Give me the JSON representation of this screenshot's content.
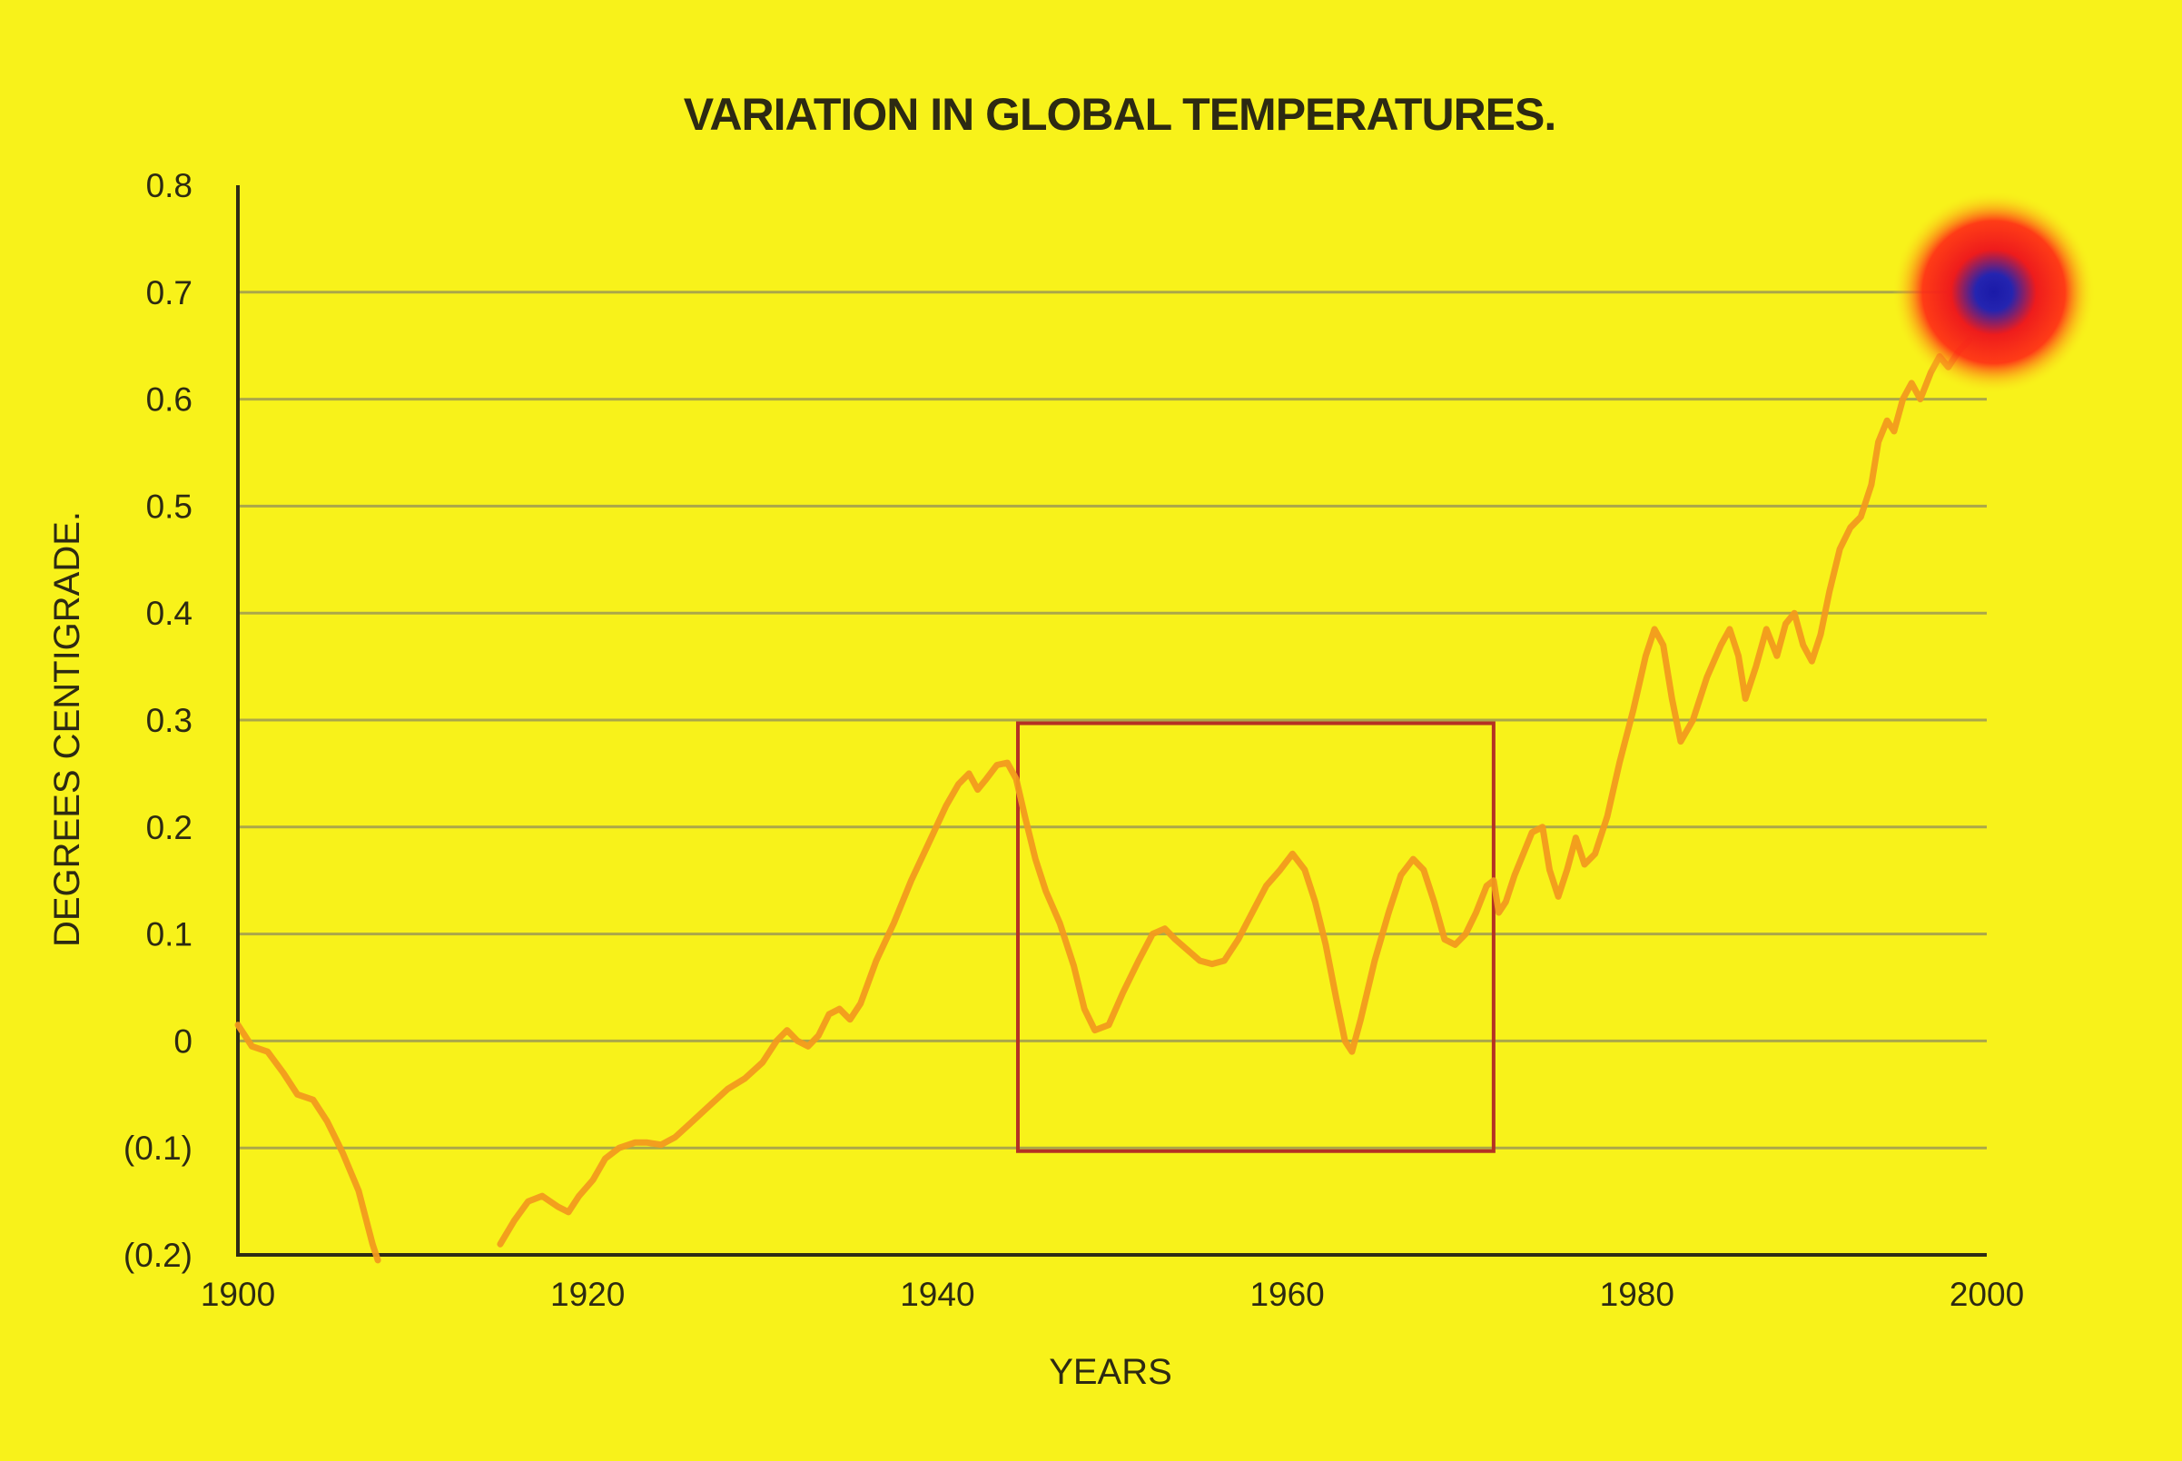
{
  "chart_data": {
    "type": "line",
    "title": "VARIATION IN GLOBAL TEMPERATURES.",
    "xlabel": "YEARS",
    "ylabel": "DEGREES CENTIGRADE.",
    "xlim": [
      1900,
      2000
    ],
    "ylim": [
      -0.2,
      0.8
    ],
    "x_ticks": [
      {
        "value": 1900,
        "label": "1900"
      },
      {
        "value": 1920,
        "label": "1920"
      },
      {
        "value": 1940,
        "label": "1940"
      },
      {
        "value": 1960,
        "label": "1960"
      },
      {
        "value": 1980,
        "label": "1980"
      },
      {
        "value": 2000,
        "label": "2000"
      }
    ],
    "y_ticks": [
      {
        "value": 0.8,
        "label": "0.8"
      },
      {
        "value": 0.7,
        "label": "0.7"
      },
      {
        "value": 0.6,
        "label": "0.6"
      },
      {
        "value": 0.5,
        "label": "0.5"
      },
      {
        "value": 0.4,
        "label": "0.4"
      },
      {
        "value": 0.3,
        "label": "0.3"
      },
      {
        "value": 0.2,
        "label": "0.2"
      },
      {
        "value": 0.1,
        "label": "0.1"
      },
      {
        "value": 0,
        "label": "0"
      },
      {
        "value": -0.1,
        "label": "(0.1)"
      },
      {
        "value": -0.2,
        "label": "(0.2)"
      }
    ],
    "grid": true,
    "series": [
      {
        "color": "#f29a1e",
        "segments": [
          [
            [
              1900.0,
              0.015
            ],
            [
              1900.8,
              -0.005
            ],
            [
              1901.7,
              -0.01
            ],
            [
              1902.6,
              -0.03
            ],
            [
              1903.4,
              -0.05
            ],
            [
              1904.3,
              -0.055
            ],
            [
              1905.1,
              -0.075
            ],
            [
              1906.0,
              -0.105
            ],
            [
              1906.9,
              -0.14
            ],
            [
              1907.7,
              -0.19
            ],
            [
              1908.0,
              -0.205
            ]
          ],
          [
            [
              1915.0,
              -0.19
            ],
            [
              1915.8,
              -0.168
            ],
            [
              1916.6,
              -0.15
            ],
            [
              1917.4,
              -0.145
            ],
            [
              1918.3,
              -0.155
            ],
            [
              1918.9,
              -0.16
            ],
            [
              1919.5,
              -0.145
            ],
            [
              1920.3,
              -0.13
            ],
            [
              1921.0,
              -0.11
            ],
            [
              1921.8,
              -0.1
            ],
            [
              1922.7,
              -0.095
            ],
            [
              1923.4,
              -0.095
            ],
            [
              1924.2,
              -0.097
            ],
            [
              1925.0,
              -0.09
            ],
            [
              1926.0,
              -0.075
            ],
            [
              1927.0,
              -0.06
            ],
            [
              1928.0,
              -0.045
            ],
            [
              1929.0,
              -0.035
            ],
            [
              1930.0,
              -0.02
            ],
            [
              1930.8,
              0.0
            ],
            [
              1931.4,
              0.01
            ],
            [
              1932.0,
              0.0
            ],
            [
              1932.6,
              -0.005
            ],
            [
              1933.2,
              0.005
            ],
            [
              1933.8,
              0.025
            ],
            [
              1934.4,
              0.03
            ],
            [
              1935.0,
              0.02
            ],
            [
              1935.6,
              0.035
            ],
            [
              1936.5,
              0.075
            ],
            [
              1937.5,
              0.11
            ],
            [
              1938.5,
              0.15
            ],
            [
              1939.5,
              0.185
            ],
            [
              1940.5,
              0.22
            ],
            [
              1941.2,
              0.24
            ],
            [
              1941.8,
              0.25
            ],
            [
              1942.3,
              0.235
            ],
            [
              1942.8,
              0.245
            ],
            [
              1943.4,
              0.258
            ],
            [
              1944.0,
              0.26
            ],
            [
              1944.5,
              0.245
            ],
            [
              1945.0,
              0.21
            ],
            [
              1945.6,
              0.17
            ],
            [
              1946.2,
              0.14
            ],
            [
              1947.0,
              0.11
            ],
            [
              1947.8,
              0.07
            ],
            [
              1948.4,
              0.03
            ],
            [
              1949.0,
              0.01
            ],
            [
              1949.8,
              0.015
            ],
            [
              1950.6,
              0.045
            ],
            [
              1951.5,
              0.075
            ],
            [
              1952.3,
              0.1
            ],
            [
              1953.0,
              0.105
            ],
            [
              1953.6,
              0.095
            ],
            [
              1954.3,
              0.085
            ],
            [
              1955.0,
              0.075
            ],
            [
              1955.7,
              0.072
            ],
            [
              1956.4,
              0.075
            ],
            [
              1957.2,
              0.095
            ],
            [
              1958.0,
              0.12
            ],
            [
              1958.8,
              0.145
            ],
            [
              1959.6,
              0.16
            ],
            [
              1960.3,
              0.175
            ],
            [
              1961.0,
              0.16
            ],
            [
              1961.6,
              0.13
            ],
            [
              1962.2,
              0.09
            ],
            [
              1962.8,
              0.04
            ],
            [
              1963.3,
              0.0
            ],
            [
              1963.7,
              -0.01
            ],
            [
              1964.2,
              0.02
            ],
            [
              1965.0,
              0.075
            ],
            [
              1965.8,
              0.12
            ],
            [
              1966.5,
              0.155
            ],
            [
              1967.2,
              0.17
            ],
            [
              1967.8,
              0.16
            ],
            [
              1968.4,
              0.13
            ],
            [
              1969.0,
              0.095
            ],
            [
              1969.6,
              0.09
            ],
            [
              1970.2,
              0.1
            ],
            [
              1970.8,
              0.12
            ],
            [
              1971.4,
              0.145
            ],
            [
              1971.8,
              0.15
            ],
            [
              1972.1,
              0.12
            ],
            [
              1972.5,
              0.13
            ],
            [
              1973.0,
              0.155
            ],
            [
              1973.5,
              0.175
            ],
            [
              1974.0,
              0.195
            ],
            [
              1974.6,
              0.2
            ],
            [
              1975.0,
              0.16
            ],
            [
              1975.5,
              0.135
            ],
            [
              1976.0,
              0.16
            ],
            [
              1976.5,
              0.19
            ],
            [
              1977.0,
              0.165
            ],
            [
              1977.6,
              0.175
            ],
            [
              1978.3,
              0.21
            ],
            [
              1979.0,
              0.26
            ],
            [
              1979.8,
              0.31
            ],
            [
              1980.5,
              0.36
            ],
            [
              1981.0,
              0.385
            ],
            [
              1981.5,
              0.37
            ],
            [
              1982.0,
              0.32
            ],
            [
              1982.5,
              0.28
            ],
            [
              1983.2,
              0.3
            ],
            [
              1984.0,
              0.34
            ],
            [
              1984.8,
              0.37
            ],
            [
              1985.3,
              0.385
            ],
            [
              1985.8,
              0.36
            ],
            [
              1986.2,
              0.32
            ],
            [
              1986.8,
              0.35
            ],
            [
              1987.4,
              0.385
            ],
            [
              1988.0,
              0.36
            ],
            [
              1988.5,
              0.39
            ],
            [
              1989.0,
              0.4
            ],
            [
              1989.5,
              0.37
            ],
            [
              1990.0,
              0.355
            ],
            [
              1990.5,
              0.38
            ],
            [
              1991.0,
              0.42
            ],
            [
              1991.6,
              0.46
            ],
            [
              1992.2,
              0.48
            ],
            [
              1992.8,
              0.49
            ],
            [
              1993.4,
              0.52
            ],
            [
              1993.8,
              0.56
            ],
            [
              1994.3,
              0.58
            ],
            [
              1994.7,
              0.57
            ],
            [
              1995.2,
              0.6
            ],
            [
              1995.7,
              0.615
            ],
            [
              1996.2,
              0.6
            ],
            [
              1996.8,
              0.625
            ],
            [
              1997.3,
              0.64
            ],
            [
              1997.8,
              0.63
            ],
            [
              1998.4,
              0.645
            ],
            [
              1999.0,
              0.655
            ]
          ]
        ]
      }
    ],
    "annotations": [
      {
        "type": "rectangle",
        "x": [
          1944.6,
          1971.8
        ],
        "y": [
          -0.103,
          0.297
        ],
        "color": "#b43124"
      },
      {
        "type": "glow-marker",
        "x": 2000.4,
        "y": 0.7,
        "colors": [
          "#1a1aa8",
          "#ee1c1c",
          "#f8f21a"
        ]
      }
    ],
    "colors": {
      "background": "#f8f21a",
      "text": "#2d2a12",
      "axis": "#2e2b14",
      "grid": "#9e9b52"
    }
  }
}
